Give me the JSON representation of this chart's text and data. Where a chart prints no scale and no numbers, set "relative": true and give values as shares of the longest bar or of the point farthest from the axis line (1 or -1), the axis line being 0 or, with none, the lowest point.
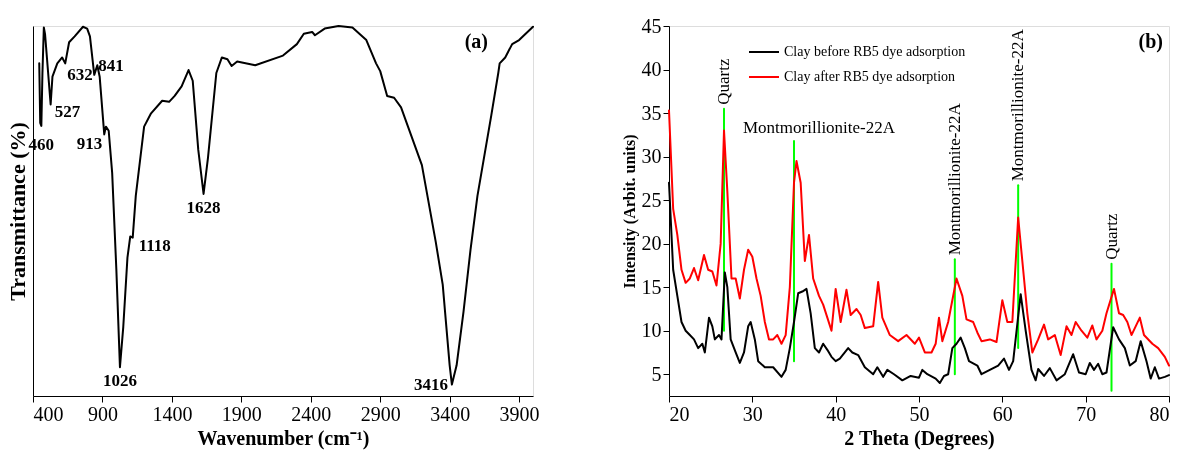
{
  "chart_data": [
    {
      "type": "line",
      "relative": true,
      "xlabel": "Wavenumber (cm⁻¹)",
      "ylabel": "Transmittance (%)",
      "xlim": [
        400,
        4000
      ],
      "xticks": [
        400,
        900,
        1400,
        1900,
        2400,
        2900,
        3400,
        3900
      ],
      "grid": false,
      "legend": false,
      "marker": "none",
      "line_style": "solid",
      "annotations": [
        "(a)",
        {
          "text": "460",
          "x": 460,
          "y": 0.73
        },
        {
          "text": "527",
          "x": 527,
          "y": 0.788
        },
        {
          "text": "632",
          "x": 632,
          "y": 0.899
        },
        {
          "text": "841",
          "x": 841,
          "y": 0.868
        },
        {
          "text": "913",
          "x": 913,
          "y": 0.707
        },
        {
          "text": "1026",
          "x": 1026,
          "y": 0.078
        },
        {
          "text": "1118",
          "x": 1118,
          "y": 0.428
        },
        {
          "text": "1628",
          "x": 1628,
          "y": 0.546
        },
        {
          "text": "3416",
          "x": 3416,
          "y": 0.031
        }
      ],
      "series": [
        {
          "color": "#000000",
          "x": [
            445,
            452,
            460,
            468,
            478,
            487,
            527,
            540,
            575,
            610,
            632,
            660,
            700,
            760,
            790,
            810,
            841,
            863,
            880,
            913,
            925,
            945,
            970,
            1000,
            1026,
            1050,
            1080,
            1100,
            1118,
            1140,
            1200,
            1250,
            1330,
            1380,
            1420,
            1470,
            1520,
            1550,
            1590,
            1628,
            1660,
            1720,
            1760,
            1800,
            1830,
            1870,
            2000,
            2200,
            2300,
            2350,
            2410,
            2430,
            2500,
            2600,
            2700,
            2800,
            2870,
            2900,
            2950,
            3000,
            3050,
            3100,
            3200,
            3300,
            3350,
            3400,
            3416,
            3450,
            3500,
            3550,
            3600,
            3700,
            3750,
            3760,
            3800,
            3850,
            3900,
            4000
          ],
          "values": [
            0.899,
            0.738,
            0.73,
            0.873,
            0.996,
            0.977,
            0.788,
            0.863,
            0.899,
            0.915,
            0.899,
            0.956,
            0.972,
            0.998,
            0.993,
            0.972,
            0.868,
            0.894,
            0.863,
            0.707,
            0.728,
            0.717,
            0.603,
            0.343,
            0.078,
            0.187,
            0.374,
            0.431,
            0.428,
            0.541,
            0.728,
            0.764,
            0.798,
            0.795,
            0.811,
            0.837,
            0.881,
            0.852,
            0.665,
            0.546,
            0.644,
            0.873,
            0.915,
            0.91,
            0.892,
            0.904,
            0.894,
            0.92,
            0.951,
            0.979,
            0.984,
            0.975,
            0.993,
            1.0,
            0.996,
            0.962,
            0.899,
            0.878,
            0.811,
            0.806,
            0.78,
            0.728,
            0.624,
            0.416,
            0.301,
            0.083,
            0.031,
            0.083,
            0.229,
            0.395,
            0.541,
            0.759,
            0.873,
            0.899,
            0.915,
            0.951,
            0.962,
            0.998
          ]
        }
      ]
    },
    {
      "type": "line",
      "xlabel": "2 Theta (Degrees)",
      "ylabel": "Intensity (Arbit. units)",
      "xlim": [
        20,
        80
      ],
      "xticks": [
        20,
        30,
        40,
        50,
        60,
        70,
        80
      ],
      "ylim": [
        2.5,
        45
      ],
      "yticks": [
        5,
        10,
        15,
        20,
        25,
        30,
        35,
        40,
        45
      ],
      "grid": false,
      "legend": "top left",
      "marker": "none",
      "line_style": "solid",
      "annotations": [
        "(b)",
        {
          "text": "Quartz",
          "x": 26.6,
          "y": 35.5
        },
        {
          "text": "Montmorillionite-22A",
          "x": 35.0,
          "y": 31.8
        },
        {
          "text": "Montmorillionite-22A",
          "x": 54.3,
          "y": 18.2
        },
        {
          "text": "Montmorillionite-22A",
          "x": 61.9,
          "y": 26.7
        },
        {
          "text": "Quartz",
          "x": 73.1,
          "y": 17.7
        }
      ],
      "series": [
        {
          "name": "Clay before RB5 dye adsorption",
          "color": "#000000",
          "x": [
            20,
            20.5,
            21,
            21.5,
            22,
            22.5,
            23,
            23.5,
            24,
            24.3,
            24.8,
            25.2,
            25.5,
            26,
            26.3,
            26.7,
            27,
            27.4,
            28,
            28.5,
            29,
            29.5,
            29.8,
            30.3,
            30.7,
            31.5,
            32.5,
            33.5,
            34,
            34.5,
            35,
            35.5,
            36,
            36.5,
            37,
            37.5,
            38,
            38.5,
            39,
            39.5,
            40,
            40.5,
            41.5,
            42,
            42.7,
            43.5,
            44.5,
            45,
            45.7,
            46.2,
            47,
            48,
            49,
            50,
            50.4,
            51,
            52,
            52.5,
            53,
            53.5,
            54,
            54.5,
            55,
            55.5,
            56,
            57,
            57.5,
            58.5,
            59.5,
            60.2,
            60.8,
            61.3,
            62.2,
            62.8,
            63.5,
            64,
            64.3,
            65,
            65.7,
            66.5,
            67.5,
            68.5,
            69.2,
            70,
            70.5,
            71,
            71.5,
            72,
            72.5,
            73.3,
            74,
            74.7,
            75.3,
            76,
            76.6,
            77.3,
            77.8,
            78.3,
            78.8,
            79.5,
            80
          ],
          "values": [
            27,
            17,
            14,
            11,
            10,
            9.5,
            9,
            8,
            8.5,
            7.5,
            11.5,
            10.5,
            9,
            9.5,
            9,
            16.7,
            15,
            9,
            7.5,
            6.3,
            7.5,
            10.5,
            11,
            9,
            6.5,
            5.8,
            5.8,
            4.7,
            5.5,
            8,
            11,
            14.3,
            14.5,
            14.8,
            12,
            8,
            7.5,
            8.5,
            7.8,
            7,
            6.5,
            6.8,
            8,
            7.5,
            7.2,
            5.8,
            5,
            5.8,
            4.7,
            5.5,
            5,
            4.3,
            4.8,
            4.6,
            5.5,
            5,
            4.5,
            4,
            4.8,
            5,
            8,
            8.5,
            9.2,
            8,
            6.5,
            6,
            5,
            5.5,
            6,
            6.8,
            5.5,
            6.5,
            14.2,
            10,
            5.5,
            4.3,
            5.6,
            4.8,
            5.7,
            4.3,
            5,
            7.3,
            5.2,
            5,
            6.3,
            5.5,
            6.2,
            5,
            5.2,
            10.4,
            9,
            8,
            6,
            6.5,
            8.8,
            6.5,
            4.5,
            5.8,
            4.5,
            4.7,
            4.9
          ]
        },
        {
          "name": "Clay after RB5 dye adsorption",
          "color": "#ff0000",
          "x": [
            20,
            20.5,
            21,
            21.5,
            22,
            22.5,
            23,
            23.5,
            24.2,
            24.7,
            25.2,
            25.7,
            26.2,
            26.6,
            27,
            27.5,
            28,
            28.5,
            29,
            29.5,
            30,
            30.5,
            31,
            31.5,
            32,
            32.5,
            33,
            33.5,
            34,
            34.5,
            35,
            35.3,
            35.8,
            36.3,
            36.8,
            37.3,
            38,
            38.5,
            39,
            39.5,
            40,
            40.6,
            41.3,
            41.8,
            42.5,
            43,
            43.5,
            44.5,
            45.1,
            45.6,
            46.5,
            47.5,
            48.5,
            49.5,
            50,
            50.7,
            51.5,
            52,
            52.4,
            52.8,
            53.5,
            54.5,
            55.2,
            55.7,
            56.5,
            57,
            57.5,
            58.5,
            59.3,
            60,
            60.6,
            61.2,
            61.9,
            62.5,
            63,
            63.6,
            64.3,
            65,
            65.5,
            66.3,
            67,
            67.7,
            68.3,
            68.8,
            69.5,
            70.2,
            70.8,
            71.3,
            72,
            72.5,
            73.4,
            74,
            74.5,
            75,
            75.5,
            76.5,
            77,
            78,
            78.7,
            79.5,
            80
          ],
          "values": [
            35.3,
            24,
            21,
            17,
            15.5,
            16,
            17.2,
            15.8,
            18.7,
            17,
            16.8,
            15.2,
            20,
            33,
            26,
            16,
            16,
            13.7,
            17,
            19.3,
            18.5,
            16,
            14,
            11,
            9,
            9,
            9.5,
            8.5,
            9.5,
            15,
            27,
            29.5,
            27,
            18,
            21,
            16,
            14,
            13,
            11.5,
            10,
            14.8,
            11,
            14.7,
            11.8,
            12.5,
            11.8,
            10.3,
            10.5,
            15.6,
            11.5,
            9.5,
            8.8,
            9.5,
            8.5,
            9.2,
            7.5,
            7.5,
            8.5,
            11.5,
            8.8,
            11,
            16,
            14,
            11.3,
            11,
            9.8,
            8.8,
            9,
            8.7,
            13.5,
            11,
            11,
            23,
            17,
            12,
            7.5,
            9,
            10.7,
            9,
            9.5,
            7.2,
            10.5,
            9.5,
            11,
            10,
            9.2,
            10.6,
            9,
            10,
            12,
            14.8,
            12,
            11.8,
            11,
            9.5,
            11.5,
            9.5,
            8.5,
            8,
            7,
            6
          ]
        },
        {
          "color": "#00ff00",
          "x": [
            26.6,
            26.6
          ],
          "values": [
            10,
            35.5
          ]
        },
        {
          "color": "#00ff00",
          "x": [
            35.0,
            35.0
          ],
          "values": [
            6.5,
            31.8
          ]
        },
        {
          "color": "#00ff00",
          "x": [
            54.3,
            54.3
          ],
          "values": [
            5,
            18.2
          ]
        },
        {
          "color": "#00ff00",
          "x": [
            61.9,
            61.9
          ],
          "values": [
            8,
            26.7
          ]
        },
        {
          "color": "#00ff00",
          "x": [
            73.1,
            73.1
          ],
          "values": [
            3.1,
            17.7
          ]
        }
      ]
    }
  ]
}
